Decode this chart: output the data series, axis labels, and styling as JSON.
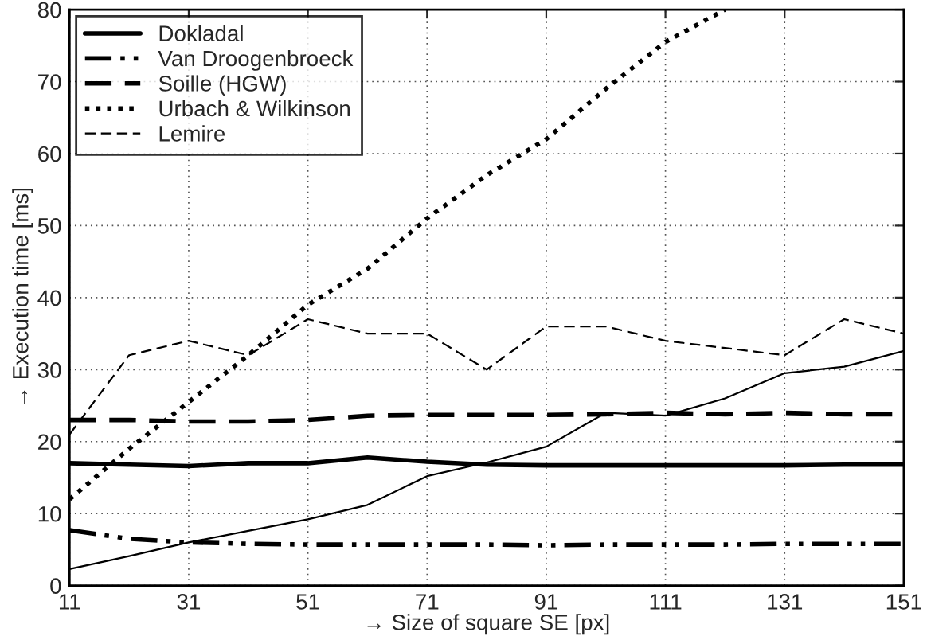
{
  "chart_data": {
    "type": "line",
    "xlabel": "→ Size of square SE [px]",
    "ylabel": "→ Execution time [ms]",
    "x": [
      11,
      21,
      31,
      41,
      51,
      61,
      71,
      81,
      91,
      101,
      111,
      121,
      131,
      141,
      151
    ],
    "xlim": [
      11,
      151
    ],
    "xticks": [
      11,
      31,
      51,
      71,
      91,
      111,
      131,
      151
    ],
    "ylim": [
      0,
      80
    ],
    "yticks": [
      0,
      10,
      20,
      30,
      40,
      50,
      60,
      70,
      80
    ],
    "grid": true,
    "legend": "top left",
    "marker": "none",
    "series": [
      {
        "name": "Dokladal",
        "color": "#000000",
        "line_style": "solid",
        "values": [
          17,
          16.8,
          16.6,
          17,
          17,
          17.8,
          17.2,
          16.8,
          16.7,
          16.7,
          16.7,
          16.7,
          16.7,
          16.8,
          16.8
        ]
      },
      {
        "name": "Van Droogenbroeck",
        "color": "#000000",
        "line_style": "dashdot",
        "values": [
          7.7,
          6.5,
          6,
          5.8,
          5.7,
          5.7,
          5.7,
          5.7,
          5.6,
          5.7,
          5.7,
          5.7,
          5.8,
          5.8,
          5.8
        ]
      },
      {
        "name": "Soille (HGW)",
        "color": "#000000",
        "line_style": "dashed",
        "values": [
          23,
          23,
          22.8,
          22.8,
          23,
          23.6,
          23.7,
          23.7,
          23.7,
          23.8,
          24,
          23.8,
          24,
          23.8,
          23.8
        ]
      },
      {
        "name": "Urbach & Wilkinson",
        "color": "#000000",
        "line_style": "dotted",
        "values": [
          12,
          19,
          25.5,
          32,
          39,
          44,
          51,
          57,
          62,
          69,
          75.5,
          80,
          null,
          null,
          null
        ]
      },
      {
        "name": "Lemire",
        "color": "#000000",
        "line_style": "dashed",
        "values": [
          21,
          32,
          34,
          32,
          37,
          35,
          35,
          30,
          36,
          36,
          34,
          33,
          32,
          37,
          35
        ]
      },
      {
        "color": "#000000",
        "line_style": "solid",
        "values": [
          2.3,
          4.1,
          6,
          7.6,
          9.2,
          11.2,
          15.2,
          17.1,
          19.3,
          24,
          23.6,
          26,
          29.5,
          30.4,
          32.6
        ]
      }
    ]
  }
}
